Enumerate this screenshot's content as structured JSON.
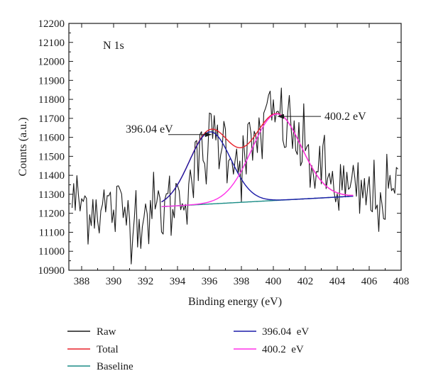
{
  "chart_data": {
    "type": "line",
    "xlabel": "Binding energy (eV)",
    "ylabel": "Counts (a.u.)",
    "xlim": [
      387.2,
      408.0
    ],
    "ylim": [
      10900,
      12200
    ],
    "x_ticks": [
      388,
      390,
      392,
      394,
      396,
      398,
      400,
      402,
      404,
      406,
      408
    ],
    "y_ticks": [
      10900,
      11000,
      11100,
      11200,
      11300,
      11400,
      11500,
      11600,
      11700,
      11800,
      11900,
      12000,
      12100,
      12200
    ],
    "grid": false,
    "legend_position": "below",
    "region_label": "N 1s",
    "annotations": [
      {
        "text": "396.04 eV",
        "x": 396.3,
        "y": 11618
      },
      {
        "text": "400.2 eV",
        "x": 400.4,
        "y": 11710
      }
    ],
    "raw_envelope": {
      "x_start": 387.4,
      "x_end": 407.8,
      "step": 0.1,
      "x": [
        387.4,
        389,
        391,
        392.5,
        393.5,
        394.5,
        395.5,
        396.3,
        397.2,
        398,
        398.8,
        399.6,
        400.3,
        401.2,
        402.2,
        403.5,
        405,
        406.5,
        407.8
      ],
      "y": [
        11260,
        11240,
        11200,
        11210,
        11240,
        11330,
        11480,
        11610,
        11560,
        11470,
        11560,
        11690,
        11710,
        11620,
        11480,
        11370,
        11300,
        11280,
        11300
      ],
      "noise_sd": 120
    },
    "series": [
      {
        "name": "Raw",
        "color": "#1a1a1a",
        "model": "noisy"
      },
      {
        "name": "Total",
        "color": "#e8202a",
        "model": "total"
      },
      {
        "name": "Baseline",
        "color": "#1a8c86",
        "model": "baseline"
      },
      {
        "name": "396.04  eV",
        "color": "#1c1ca8",
        "model": "peak",
        "center": 396.04,
        "height": 380,
        "sigma": 1.3
      },
      {
        "name": "400.2  eV",
        "color": "#ff30e8",
        "model": "peak",
        "center": 400.2,
        "height": 455,
        "sigma": 1.55
      }
    ],
    "baseline": {
      "x": [
        393.0,
        405.0
      ],
      "y": [
        11235,
        11290
      ]
    }
  }
}
